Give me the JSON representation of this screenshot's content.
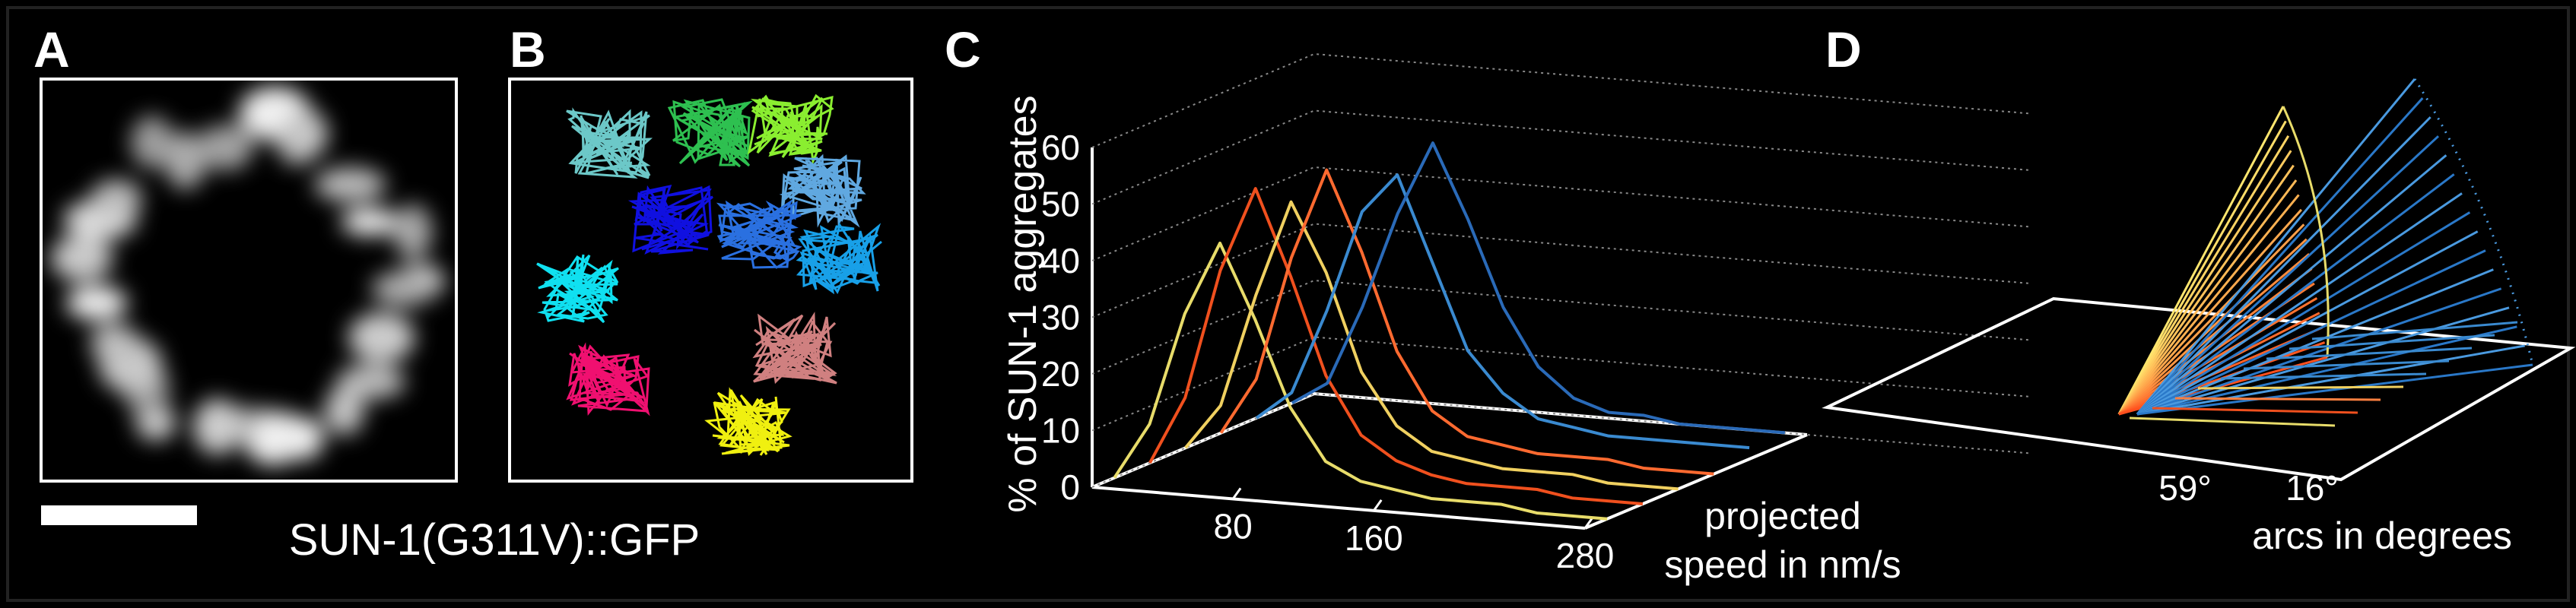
{
  "caption": "SUN-1(G311V)::GFP",
  "panels": {
    "a": {
      "label": "A"
    },
    "b": {
      "label": "B"
    },
    "c": {
      "label": "C"
    },
    "d": {
      "label": "D",
      "tick_labels": [
        "59°",
        "16°"
      ],
      "axis_label": "arcs in degrees"
    }
  },
  "chart_data": {
    "type": "line",
    "ylabel": "% of SUN-1 aggregates",
    "xlabel": [
      "projected",
      "speed in nm/s"
    ],
    "x": [
      0,
      20,
      40,
      60,
      80,
      100,
      120,
      140,
      160,
      180,
      200,
      220,
      240,
      260,
      280
    ],
    "xlim": [
      0,
      280
    ],
    "xticks": [
      80,
      160,
      280
    ],
    "ylim": [
      0,
      60
    ],
    "yticks": [
      0,
      10,
      20,
      30,
      40,
      50,
      60
    ],
    "series": [
      {
        "color": "#e8dc6a",
        "values": [
          0,
          10,
          30,
          43,
          30,
          15,
          6,
          3,
          2,
          1,
          1,
          1,
          0,
          0,
          0
        ]
      },
      {
        "color": "#f0501e",
        "values": [
          0,
          12,
          35,
          50,
          35,
          18,
          8,
          4,
          2,
          1,
          1,
          1,
          0,
          0,
          0
        ]
      },
      {
        "color": "#f0d060",
        "values": [
          0,
          8,
          28,
          45,
          33,
          16,
          7,
          3,
          2,
          1,
          1,
          1,
          0,
          0,
          0
        ]
      },
      {
        "color": "#ff6a30",
        "values": [
          0,
          10,
          32,
          48,
          34,
          17,
          7,
          3,
          2,
          1,
          1,
          1,
          0,
          0,
          0
        ]
      },
      {
        "color": "#3a8ad0",
        "values": [
          0,
          5,
          20,
          38,
          45,
          30,
          15,
          8,
          4,
          3,
          2,
          2,
          2,
          2,
          2
        ]
      },
      {
        "color": "#2a6ab8",
        "values": [
          0,
          4,
          18,
          35,
          48,
          35,
          20,
          10,
          5,
          3,
          3,
          2,
          2,
          2,
          2
        ]
      }
    ]
  }
}
